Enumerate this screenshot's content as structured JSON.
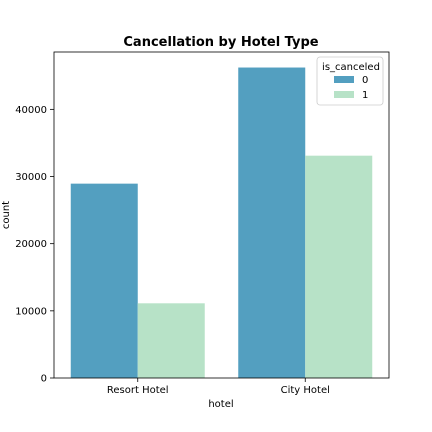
{
  "chart_data": {
    "type": "bar",
    "title": "Cancellation by Hotel Type",
    "xlabel": "hotel",
    "ylabel": "count",
    "categories": [
      "Resort Hotel",
      "City Hotel"
    ],
    "series": [
      {
        "name": "0",
        "values": [
          28938,
          46228
        ],
        "color": "#539fc0"
      },
      {
        "name": "1",
        "values": [
          11122,
          33102
        ],
        "color": "#b7e2c7"
      }
    ],
    "yticks": [
      0,
      10000,
      20000,
      30000,
      40000
    ],
    "ylim": [
      0,
      48540
    ],
    "legend": {
      "title": "is_canceled",
      "placement": "top-right"
    },
    "grid": false
  }
}
